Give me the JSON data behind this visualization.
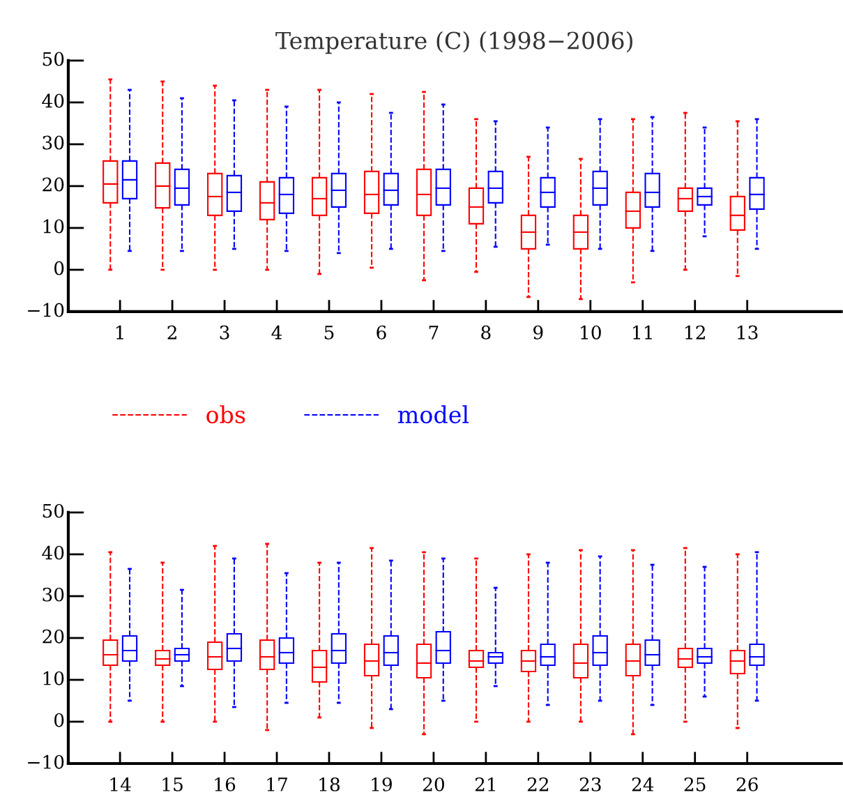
{
  "chart_data": [
    {
      "type": "box",
      "title": "Temperature (C) (1998−2006)",
      "categories": [
        "1",
        "2",
        "3",
        "4",
        "5",
        "6",
        "7",
        "8",
        "9",
        "10",
        "11",
        "12",
        "13"
      ],
      "ylim": [
        -10,
        50
      ],
      "yticks": [
        -10,
        0,
        10,
        20,
        30,
        40,
        50
      ],
      "legend": "bottom",
      "line_style": "dashed",
      "grid": false,
      "series": [
        {
          "name": "obs",
          "color": "#ff0000",
          "boxes": [
            {
              "low": 0,
              "q1": 16,
              "median": 20.5,
              "q3": 26,
              "high": 45.5
            },
            {
              "low": 0,
              "q1": 14.8,
              "median": 20,
              "q3": 25.5,
              "high": 45
            },
            {
              "low": 0,
              "q1": 13,
              "median": 17.5,
              "q3": 23,
              "high": 44
            },
            {
              "low": 0,
              "q1": 12,
              "median": 16,
              "q3": 21,
              "high": 43
            },
            {
              "low": -1,
              "q1": 13,
              "median": 17,
              "q3": 22,
              "high": 43
            },
            {
              "low": 0.5,
              "q1": 13.5,
              "median": 18,
              "q3": 23.5,
              "high": 42
            },
            {
              "low": -2.5,
              "q1": 13,
              "median": 18,
              "q3": 24,
              "high": 42.5
            },
            {
              "low": -0.5,
              "q1": 11,
              "median": 15,
              "q3": 19.5,
              "high": 36
            },
            {
              "low": -6.5,
              "q1": 5,
              "median": 9,
              "q3": 13,
              "high": 27
            },
            {
              "low": -7,
              "q1": 5,
              "median": 9,
              "q3": 13,
              "high": 26.5
            },
            {
              "low": -3,
              "q1": 10,
              "median": 14,
              "q3": 18.5,
              "high": 36
            },
            {
              "low": 0,
              "q1": 14,
              "median": 17,
              "q3": 19.5,
              "high": 37.5
            },
            {
              "low": -1.5,
              "q1": 9.5,
              "median": 13,
              "q3": 17.5,
              "high": 35.5
            }
          ]
        },
        {
          "name": "model",
          "color": "#0000ff",
          "boxes": [
            {
              "low": 4.5,
              "q1": 17,
              "median": 21.5,
              "q3": 26,
              "high": 43
            },
            {
              "low": 4.5,
              "q1": 15.5,
              "median": 19.5,
              "q3": 24,
              "high": 41
            },
            {
              "low": 5,
              "q1": 14,
              "median": 18.5,
              "q3": 22.5,
              "high": 40.5
            },
            {
              "low": 4.5,
              "q1": 13.5,
              "median": 18,
              "q3": 22,
              "high": 39
            },
            {
              "low": 4,
              "q1": 15,
              "median": 19,
              "q3": 23,
              "high": 40
            },
            {
              "low": 5,
              "q1": 15.5,
              "median": 19,
              "q3": 23,
              "high": 37.5
            },
            {
              "low": 4.5,
              "q1": 15.5,
              "median": 19.5,
              "q3": 24,
              "high": 39.5
            },
            {
              "low": 5.5,
              "q1": 16,
              "median": 19.5,
              "q3": 23.5,
              "high": 35.5
            },
            {
              "low": 6,
              "q1": 15,
              "median": 18.5,
              "q3": 22,
              "high": 34
            },
            {
              "low": 5,
              "q1": 15.5,
              "median": 19.5,
              "q3": 23.5,
              "high": 36
            },
            {
              "low": 4.5,
              "q1": 15,
              "median": 18.5,
              "q3": 23,
              "high": 36.5
            },
            {
              "low": 8,
              "q1": 15.5,
              "median": 17.5,
              "q3": 19.5,
              "high": 34
            },
            {
              "low": 5,
              "q1": 14.5,
              "median": 18,
              "q3": 22,
              "high": 36
            }
          ]
        }
      ]
    },
    {
      "type": "box",
      "categories": [
        "14",
        "15",
        "16",
        "17",
        "18",
        "19",
        "20",
        "21",
        "22",
        "23",
        "24",
        "25",
        "26"
      ],
      "ylim": [
        -10,
        50
      ],
      "yticks": [
        -10,
        0,
        10,
        20,
        30,
        40,
        50
      ],
      "line_style": "dashed",
      "grid": false,
      "series": [
        {
          "color": "#ff0000",
          "boxes": [
            {
              "low": 0,
              "q1": 13.5,
              "median": 16,
              "q3": 19.5,
              "high": 40.5
            },
            {
              "low": 0,
              "q1": 13.5,
              "median": 15,
              "q3": 17,
              "high": 38
            },
            {
              "low": 0,
              "q1": 12.5,
              "median": 15.5,
              "q3": 19,
              "high": 42
            },
            {
              "low": -2,
              "q1": 12.5,
              "median": 15.5,
              "q3": 19.5,
              "high": 42.5
            },
            {
              "low": 1,
              "q1": 9.5,
              "median": 13,
              "q3": 17,
              "high": 38
            },
            {
              "low": -1.5,
              "q1": 11,
              "median": 14.5,
              "q3": 18.5,
              "high": 41.5
            },
            {
              "low": -3,
              "q1": 10.5,
              "median": 14,
              "q3": 18.5,
              "high": 40.5
            },
            {
              "low": 0,
              "q1": 13,
              "median": 14.5,
              "q3": 17,
              "high": 39
            },
            {
              "low": 0,
              "q1": 12,
              "median": 14.5,
              "q3": 17,
              "high": 40
            },
            {
              "low": 0,
              "q1": 10.5,
              "median": 14,
              "q3": 18.5,
              "high": 41
            },
            {
              "low": -3,
              "q1": 11,
              "median": 14.5,
              "q3": 18.5,
              "high": 41
            },
            {
              "low": 0,
              "q1": 13,
              "median": 15,
              "q3": 17.5,
              "high": 41.5
            },
            {
              "low": -1.5,
              "q1": 11.5,
              "median": 14.5,
              "q3": 17,
              "high": 40
            }
          ]
        },
        {
          "color": "#0000ff",
          "boxes": [
            {
              "low": 5,
              "q1": 14.5,
              "median": 17,
              "q3": 20.5,
              "high": 36.5
            },
            {
              "low": 8.5,
              "q1": 14.5,
              "median": 16,
              "q3": 17.5,
              "high": 31.5
            },
            {
              "low": 3.5,
              "q1": 14.5,
              "median": 17.5,
              "q3": 21,
              "high": 39
            },
            {
              "low": 4.5,
              "q1": 14,
              "median": 16.5,
              "q3": 20,
              "high": 35.5
            },
            {
              "low": 4.5,
              "q1": 14,
              "median": 17,
              "q3": 21,
              "high": 38
            },
            {
              "low": 3,
              "q1": 13.5,
              "median": 16.5,
              "q3": 20.5,
              "high": 38.5
            },
            {
              "low": 5,
              "q1": 14,
              "median": 17,
              "q3": 21.5,
              "high": 39
            },
            {
              "low": 8.5,
              "q1": 14,
              "median": 15.5,
              "q3": 16.5,
              "high": 32
            },
            {
              "low": 4,
              "q1": 13.5,
              "median": 15.5,
              "q3": 18.5,
              "high": 38
            },
            {
              "low": 5,
              "q1": 13.5,
              "median": 16.5,
              "q3": 20.5,
              "high": 39.5
            },
            {
              "low": 4,
              "q1": 13.5,
              "median": 16,
              "q3": 19.5,
              "high": 37.5
            },
            {
              "low": 6,
              "q1": 14,
              "median": 15.5,
              "q3": 17.5,
              "high": 37
            },
            {
              "low": 5,
              "q1": 13.5,
              "median": 15.5,
              "q3": 18.5,
              "high": 40.5
            }
          ]
        }
      ]
    }
  ]
}
